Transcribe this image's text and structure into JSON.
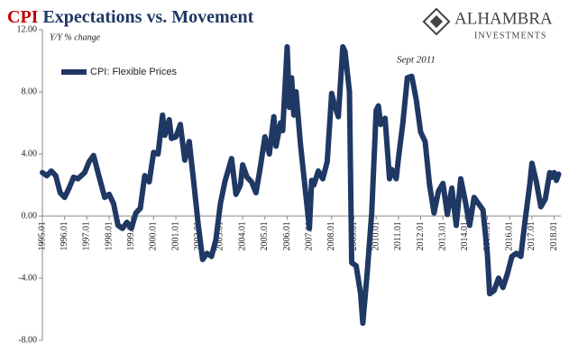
{
  "chart_data": {
    "type": "line",
    "title_highlight": "CPI",
    "title": "Expectations vs. Movement",
    "brand": "ALHAMBRA",
    "brand_sub": "INVESTMENTS",
    "y_label": "Y/Y % change",
    "annotation": "Sept 2011",
    "legend": "upper-left",
    "x": [
      1995.0,
      1995.2,
      1995.4,
      1995.6,
      1995.8,
      1996.0,
      1996.2,
      1996.4,
      1996.6,
      1996.9,
      1997.1,
      1997.3,
      1997.5,
      1997.8,
      1998.0,
      1998.2,
      1998.4,
      1998.6,
      1998.8,
      1999.0,
      1999.2,
      1999.4,
      1999.6,
      1999.8,
      2000.0,
      2000.2,
      2000.4,
      2000.5,
      2000.7,
      2000.8,
      2001.0,
      2001.2,
      2001.4,
      2001.6,
      2001.8,
      2002.0,
      2002.2,
      2002.4,
      2002.6,
      2002.8,
      2003.0,
      2003.2,
      2003.5,
      2003.7,
      2003.9,
      2004.0,
      2004.2,
      2004.4,
      2004.6,
      2004.8,
      2005.0,
      2005.2,
      2005.4,
      2005.5,
      2005.7,
      2005.8,
      2006.0,
      2006.1,
      2006.2,
      2006.3,
      2006.4,
      2006.6,
      2007.0,
      2007.1,
      2007.2,
      2007.4,
      2007.6,
      2007.8,
      2008.0,
      2008.1,
      2008.3,
      2008.5,
      2008.6,
      2008.8,
      2008.9,
      2009.1,
      2009.3,
      2009.4,
      2009.6,
      2009.8,
      2010.0,
      2010.1,
      2010.2,
      2010.4,
      2010.6,
      2010.7,
      2010.9,
      2011.0,
      2011.2,
      2011.4,
      2011.6,
      2011.8,
      2012.0,
      2012.2,
      2012.4,
      2012.6,
      2012.8,
      2013.0,
      2013.2,
      2013.4,
      2013.6,
      2013.8,
      2014.0,
      2014.2,
      2014.4,
      2014.6,
      2014.8,
      2015.0,
      2015.1,
      2015.3,
      2015.5,
      2015.7,
      2015.9,
      2016.1,
      2016.3,
      2016.5,
      2016.7,
      2016.9,
      2017.0,
      2017.2,
      2017.4,
      2017.6,
      2017.8,
      2017.9,
      2018.0,
      2018.1,
      2018.2
    ],
    "series": [
      {
        "name": "CPI: Flexible Prices",
        "color": "#1f3864",
        "values": [
          2.8,
          2.6,
          2.9,
          2.6,
          1.5,
          1.2,
          1.8,
          2.5,
          2.4,
          2.8,
          3.5,
          3.9,
          2.8,
          1.2,
          1.4,
          0.8,
          -0.6,
          -0.8,
          -0.4,
          -0.8,
          0.2,
          0.5,
          2.6,
          2.2,
          4.1,
          4.0,
          6.5,
          5.2,
          6.2,
          5.0,
          5.1,
          5.9,
          3.6,
          4.8,
          2.2,
          -0.5,
          -2.8,
          -2.4,
          -2.6,
          -1.5,
          0.8,
          2.2,
          3.7,
          1.4,
          2.0,
          3.3,
          2.5,
          2.2,
          1.5,
          3.2,
          5.1,
          4.0,
          6.4,
          4.5,
          6.0,
          5.5,
          10.9,
          7.0,
          8.9,
          6.5,
          8.0,
          4.6,
          -0.8,
          2.3,
          2.0,
          2.9,
          2.4,
          3.5,
          7.9,
          7.3,
          6.4,
          10.9,
          10.6,
          8.0,
          -3.0,
          -3.2,
          -5.0,
          -6.9,
          -3.6,
          0.2,
          6.8,
          7.1,
          5.9,
          6.3,
          2.4,
          3.0,
          2.4,
          3.7,
          6.0,
          8.9,
          9.0,
          7.5,
          5.4,
          4.8,
          2.0,
          0.2,
          1.6,
          2.1,
          0.1,
          1.8,
          -0.6,
          2.4,
          1.0,
          -0.6,
          1.2,
          0.8,
          0.4,
          -2.5,
          -5.0,
          -4.8,
          -4.0,
          -4.6,
          -3.7,
          -2.6,
          -2.4,
          -2.6,
          -0.2,
          2.0,
          3.4,
          2.2,
          0.6,
          1.1,
          2.8,
          2.5,
          2.8,
          2.3,
          2.7
        ]
      }
    ],
    "xlim": [
      1995.0,
      2018.3
    ],
    "xticks": [
      {
        "value": 1995,
        "label": "1995.01"
      },
      {
        "value": 1996,
        "label": "1996.01"
      },
      {
        "value": 1997,
        "label": "1997.01"
      },
      {
        "value": 1998,
        "label": "1998.01"
      },
      {
        "value": 1999,
        "label": "1999.01"
      },
      {
        "value": 2000,
        "label": "2000.01"
      },
      {
        "value": 2001,
        "label": "2001.01"
      },
      {
        "value": 2002,
        "label": "2002.01"
      },
      {
        "value": 2003,
        "label": "2003.01"
      },
      {
        "value": 2004,
        "label": "2004.01"
      },
      {
        "value": 2005,
        "label": "2005.01"
      },
      {
        "value": 2006,
        "label": "2006.01"
      },
      {
        "value": 2007,
        "label": "2007.01"
      },
      {
        "value": 2008,
        "label": "2008.01"
      },
      {
        "value": 2009,
        "label": "2009.01"
      },
      {
        "value": 2010,
        "label": "2010.01"
      },
      {
        "value": 2011,
        "label": "2011.01"
      },
      {
        "value": 2012,
        "label": "2012.01"
      },
      {
        "value": 2013,
        "label": "2013.01"
      },
      {
        "value": 2014,
        "label": "2014.01"
      },
      {
        "value": 2015,
        "label": "2015.01"
      },
      {
        "value": 2016,
        "label": "2016.01"
      },
      {
        "value": 2017,
        "label": "2017.01"
      },
      {
        "value": 2018,
        "label": "2018.01"
      }
    ],
    "ylim": [
      -8,
      12
    ],
    "yticks": [
      {
        "value": 12,
        "label": "12.00"
      },
      {
        "value": 8,
        "label": "8.00"
      },
      {
        "value": 4,
        "label": "4.00"
      },
      {
        "value": 0,
        "label": "0.00"
      },
      {
        "value": -4,
        "label": "-4.00"
      },
      {
        "value": -8,
        "label": "-8.00"
      }
    ],
    "grid": false
  }
}
